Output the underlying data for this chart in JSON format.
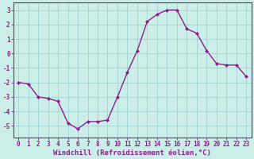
{
  "x": [
    0,
    1,
    2,
    3,
    4,
    5,
    6,
    7,
    8,
    9,
    10,
    11,
    12,
    13,
    14,
    15,
    16,
    17,
    18,
    19,
    20,
    21,
    22,
    23
  ],
  "y": [
    -2.0,
    -2.1,
    -3.0,
    -3.1,
    -3.3,
    -4.8,
    -5.2,
    -4.7,
    -4.7,
    -4.6,
    -3.0,
    -1.3,
    0.2,
    2.2,
    2.7,
    3.0,
    3.0,
    1.7,
    1.4,
    0.2,
    -0.7,
    -0.8,
    -0.8,
    -1.6
  ],
  "line_color": "#882288",
  "marker": "D",
  "marker_size": 2.0,
  "line_width": 1.0,
  "bg_color": "#cceee8",
  "grid_color": "#99cccc",
  "xlabel": "Windchill (Refroidissement éolien,°C)",
  "ylim": [
    -5.8,
    3.5
  ],
  "xlim": [
    -0.5,
    23.5
  ],
  "yticks": [
    -5,
    -4,
    -3,
    -2,
    -1,
    0,
    1,
    2,
    3
  ],
  "xticks": [
    0,
    1,
    2,
    3,
    4,
    5,
    6,
    7,
    8,
    9,
    10,
    11,
    12,
    13,
    14,
    15,
    16,
    17,
    18,
    19,
    20,
    21,
    22,
    23
  ],
  "tick_fontsize": 5.5,
  "xlabel_fontsize": 6.5,
  "label_color": "#882288",
  "spine_color": "#882288"
}
